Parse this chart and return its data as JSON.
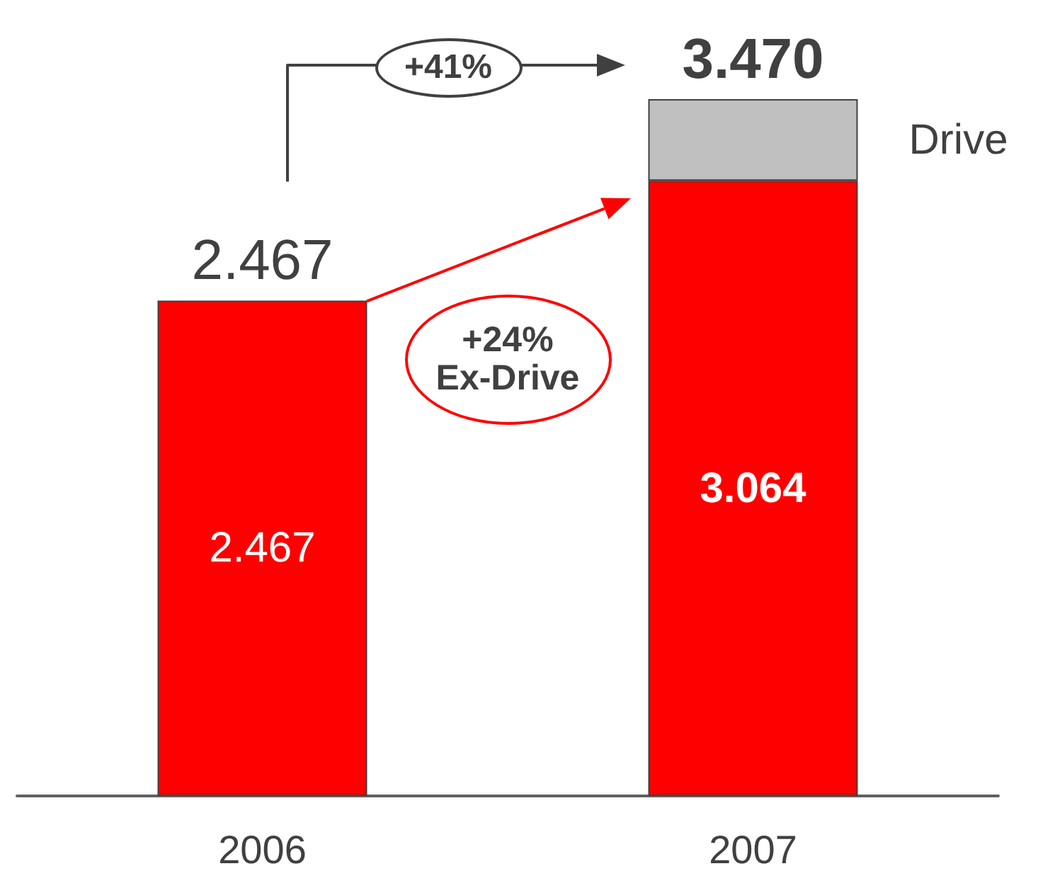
{
  "chart_data": {
    "type": "bar",
    "stacked": true,
    "categories": [
      "2006",
      "2007"
    ],
    "series": [
      {
        "color": "#ff0000",
        "values": [
          2467,
          3064
        ],
        "value_labels": [
          "2.467",
          "3.064"
        ]
      },
      {
        "name": "Drive",
        "color": "#c0c0c0",
        "values": [
          null,
          406
        ]
      }
    ],
    "totals": [
      "2.467",
      "3.470"
    ],
    "annotations": [
      "+41%",
      "+24%\nEx-Drive"
    ],
    "legend": false,
    "grid": false,
    "tick_labels": "x"
  }
}
